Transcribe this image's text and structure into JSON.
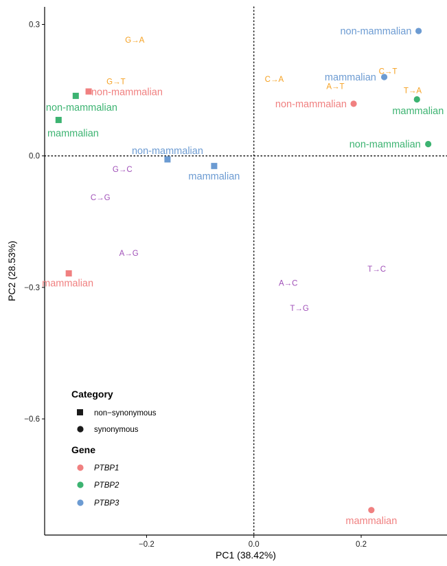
{
  "chart_data": {
    "type": "scatter",
    "xlabel": "PC1 (38.42%)",
    "ylabel": "PC2 (28.53%)",
    "xlim": [
      -0.39,
      0.36
    ],
    "ylim": [
      -0.865,
      0.34
    ],
    "x_ticks": [
      -0.2,
      0.0,
      0.2
    ],
    "x_tick_labels": [
      "−0.2",
      "0.0",
      "0.2"
    ],
    "y_ticks": [
      0.3,
      0.0,
      -0.3,
      -0.6
    ],
    "y_tick_labels": [
      "0.3",
      "0.0",
      "−0.3",
      "−0.6"
    ],
    "reference_lines": {
      "x": 0.0,
      "y": 0.0,
      "style": "dotted"
    },
    "grid": false,
    "legend_position": "bottom-left",
    "colors": {
      "PTBP1": "#F08080",
      "PTBP2": "#3CB371",
      "PTBP3": "#6C9BD2",
      "orange": "#F5A020",
      "purple": "#A050B8"
    },
    "points": [
      {
        "x": -0.308,
        "y": 0.147,
        "gene": "PTBP1",
        "category": "non-synonymous",
        "label": "non-mammalian",
        "lx": -0.303,
        "ly": 0.146,
        "anchor": "start"
      },
      {
        "x": -0.345,
        "y": -0.268,
        "gene": "PTBP1",
        "category": "non-synonymous",
        "label": "mammalian",
        "lx": -0.347,
        "ly": -0.29,
        "anchor": "middle"
      },
      {
        "x": -0.332,
        "y": 0.137,
        "gene": "PTBP2",
        "category": "non-synonymous",
        "label": "non-mammalian",
        "lx": -0.321,
        "ly": 0.111,
        "anchor": "middle"
      },
      {
        "x": -0.364,
        "y": 0.082,
        "gene": "PTBP2",
        "category": "non-synonymous",
        "label": "mammalian",
        "lx": -0.337,
        "ly": 0.052,
        "anchor": "middle"
      },
      {
        "x": -0.161,
        "y": -0.008,
        "gene": "PTBP3",
        "category": "non-synonymous",
        "label": "non-mammalian",
        "lx": -0.161,
        "ly": 0.012,
        "anchor": "middle"
      },
      {
        "x": -0.074,
        "y": -0.023,
        "gene": "PTBP3",
        "category": "non-synonymous",
        "label": "mammalian",
        "lx": -0.074,
        "ly": -0.046,
        "anchor": "middle"
      },
      {
        "x": 0.186,
        "y": 0.119,
        "gene": "PTBP1",
        "category": "synonymous",
        "label": "non-mammalian",
        "lx": 0.173,
        "ly": 0.119,
        "anchor": "end"
      },
      {
        "x": 0.219,
        "y": -0.808,
        "gene": "PTBP1",
        "category": "synonymous",
        "label": "mammalian",
        "lx": 0.219,
        "ly": -0.832,
        "anchor": "middle"
      },
      {
        "x": 0.304,
        "y": 0.129,
        "gene": "PTBP2",
        "category": "synonymous",
        "label": "mammalian",
        "lx": 0.306,
        "ly": 0.103,
        "anchor": "middle"
      },
      {
        "x": 0.325,
        "y": 0.027,
        "gene": "PTBP2",
        "category": "synonymous",
        "label": "non-mammalian",
        "lx": 0.311,
        "ly": 0.027,
        "anchor": "end"
      },
      {
        "x": 0.307,
        "y": 0.285,
        "gene": "PTBP3",
        "category": "synonymous",
        "label": "non-mammalian",
        "lx": 0.294,
        "ly": 0.285,
        "anchor": "end"
      },
      {
        "x": 0.243,
        "y": 0.18,
        "gene": "PTBP3",
        "category": "synonymous",
        "label": "mammalian",
        "lx": 0.228,
        "ly": 0.18,
        "anchor": "end"
      }
    ],
    "substitution_labels": [
      {
        "text": "G→A",
        "x": -0.222,
        "y": 0.265,
        "color": "orange"
      },
      {
        "text": "G→T",
        "x": -0.257,
        "y": 0.17,
        "color": "orange"
      },
      {
        "text": "C→A",
        "x": 0.038,
        "y": 0.175,
        "color": "orange"
      },
      {
        "text": "C→T",
        "x": 0.25,
        "y": 0.193,
        "color": "orange"
      },
      {
        "text": "A→T",
        "x": 0.152,
        "y": 0.159,
        "color": "orange"
      },
      {
        "text": "T→A",
        "x": 0.296,
        "y": 0.149,
        "color": "orange"
      },
      {
        "text": "G→C",
        "x": -0.245,
        "y": -0.03,
        "color": "purple"
      },
      {
        "text": "C→G",
        "x": -0.286,
        "y": -0.095,
        "color": "purple"
      },
      {
        "text": "A→G",
        "x": -0.233,
        "y": -0.222,
        "color": "purple"
      },
      {
        "text": "T→C",
        "x": 0.229,
        "y": -0.258,
        "color": "purple"
      },
      {
        "text": "A→C",
        "x": 0.064,
        "y": -0.29,
        "color": "purple"
      },
      {
        "text": "T→G",
        "x": 0.085,
        "y": -0.347,
        "color": "purple"
      }
    ]
  },
  "legend": {
    "category_title": "Category",
    "category_items": [
      {
        "label": "non−synonymous",
        "shape": "square"
      },
      {
        "label": "synonymous",
        "shape": "circle"
      }
    ],
    "gene_title": "Gene",
    "gene_items": [
      {
        "label": "PTBP1",
        "color": "#F08080"
      },
      {
        "label": "PTBP2",
        "color": "#3CB371"
      },
      {
        "label": "PTBP3",
        "color": "#6C9BD2"
      }
    ]
  }
}
